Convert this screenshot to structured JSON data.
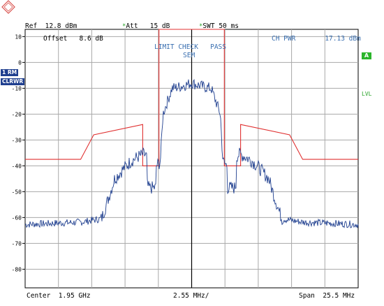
{
  "header": {
    "ref_label": "Ref",
    "ref_value": "12.8 dBm",
    "att_label": "Att",
    "att_value": "15 dB",
    "swt_label": "SWT",
    "swt_value": "50 ms",
    "star": "*",
    "offset_label": "Offset",
    "offset_value": "8.6 dB"
  },
  "overlay": {
    "limit_check_label": "LIMIT CHECK",
    "limit_check_result": "PASS",
    "limit_name": "SEM",
    "ch_pwr_label": "CH PWR",
    "ch_pwr_value": "17.13 dBm"
  },
  "side_left": {
    "trace_tag": "1 RM",
    "mode_tag": "CLRWR"
  },
  "side_right": {
    "a_tag": "A",
    "lvl_tag": "LVL"
  },
  "footer": {
    "center_label": "Center",
    "center_value": "1.95 GHz",
    "div_value": "2.55 MHz/",
    "span_label": "Span",
    "span_value": "25.5 MHz"
  },
  "colors": {
    "trace": "#1f3f8f",
    "limit_line": "#e03030",
    "grid": "#a8a8a8",
    "pass_text": "#3a6fb0",
    "side_green": "#2bb52b"
  },
  "chart_data": {
    "type": "line",
    "xlabel": "",
    "ylabel": "",
    "x_unit": "MHz offset from center",
    "xlim": [
      -12.75,
      12.75
    ],
    "ylim": [
      -87.2,
      12.8
    ],
    "y_ticks": [
      10,
      0,
      -10,
      -20,
      -30,
      -40,
      -50,
      -60,
      -70,
      -80
    ],
    "grid": true,
    "series": [
      {
        "kind": "trace",
        "x": [
          -12.75,
          -10.5,
          -8.5,
          -6.9,
          -6.4,
          -5.9,
          -5.2,
          -4.6,
          -4.1,
          -3.7,
          -3.45,
          -3.42,
          -3.3,
          -2.75,
          -2.7,
          -2.4,
          -2.3,
          -2.2,
          -1.5,
          -1.0,
          0.0,
          1.0,
          1.5,
          2.2,
          2.3,
          2.4,
          2.7,
          2.75,
          3.3,
          3.42,
          3.45,
          3.7,
          4.1,
          4.6,
          5.2,
          5.9,
          6.4,
          6.9,
          8.5,
          10.5,
          12.75
        ],
        "y": [
          -62.7,
          -62.2,
          -61.8,
          -60.5,
          -53.0,
          -45.0,
          -41.0,
          -38.0,
          -36.5,
          -35.5,
          -36.0,
          -47.0,
          -48.5,
          -48.5,
          -40.0,
          -38.5,
          -30.0,
          -20.0,
          -10.0,
          -9.5,
          -8.0,
          -9.5,
          -10.0,
          -20.0,
          -30.0,
          -38.5,
          -40.0,
          -48.5,
          -48.5,
          -47.0,
          -36.0,
          -35.5,
          -36.5,
          -38.0,
          -41.0,
          -45.0,
          -53.0,
          -60.5,
          -61.8,
          -62.2,
          -62.7
        ]
      },
      {
        "kind": "limit_line",
        "x": [
          -12.75,
          -8.5,
          -7.5,
          -3.75,
          -3.75,
          -2.5,
          -2.5,
          2.5,
          2.5,
          3.75,
          3.75,
          7.5,
          8.5,
          12.75
        ],
        "y": [
          -37.5,
          -37.5,
          -28.0,
          -24.0,
          -40.0,
          -40.0,
          17.0,
          17.0,
          -40.0,
          -40.0,
          -24.0,
          -28.0,
          -37.5,
          -37.5
        ]
      }
    ]
  }
}
